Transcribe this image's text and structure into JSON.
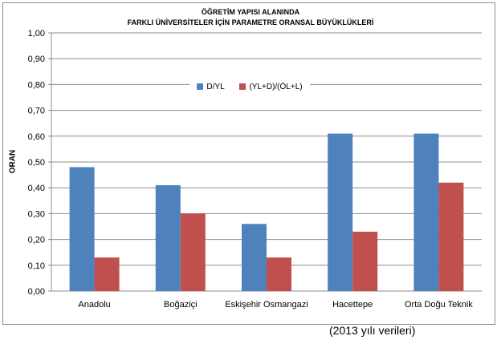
{
  "chart_data": {
    "type": "bar",
    "title_line1": "ÖĞRETİM YAPISI ALANINDA",
    "title_line2": "FARKLI ÜNİVERSİTELER İÇİN PARAMETRE  ORANSAL BÜYÜKLÜKLERİ",
    "ylabel": "ORAN",
    "categories": [
      "Anadolu",
      "Boğaziçi",
      "Eskişehir Osmangazi",
      "Hacettepe",
      "Orta Doğu Teknik"
    ],
    "series": [
      {
        "name": "D/YL",
        "color": "#4f81bd",
        "values": [
          0.48,
          0.41,
          0.26,
          0.61,
          0.61
        ]
      },
      {
        "name": "(YL+D)/(ÖL+L)",
        "color": "#c0504d",
        "values": [
          0.13,
          0.3,
          0.13,
          0.23,
          0.42
        ]
      }
    ],
    "ylim": [
      0,
      1.0
    ],
    "yticks": [
      "0,00",
      "0,10",
      "0,20",
      "0,30",
      "0,40",
      "0,50",
      "0,60",
      "0,70",
      "0,80",
      "0,90",
      "1,00"
    ],
    "grid": true,
    "legend_position": "top-center"
  },
  "footnote": "(2013 yılı verileri)"
}
